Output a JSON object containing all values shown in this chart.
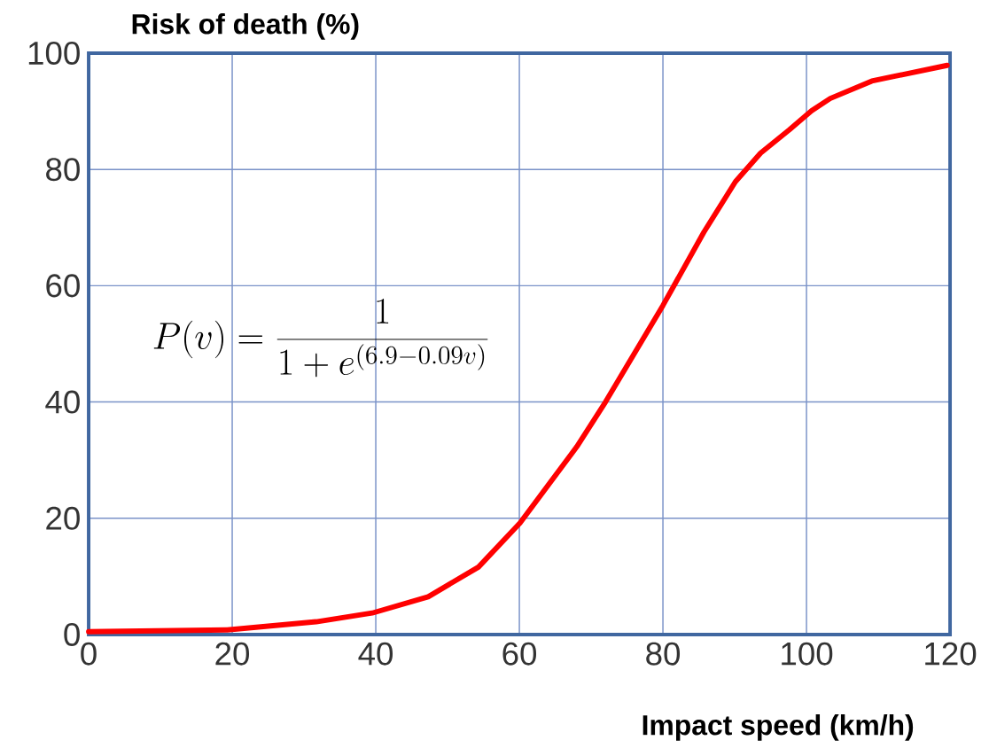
{
  "chart_data": {
    "type": "line",
    "xlabel": "Impact speed (km/h)",
    "ylabel": "Risk of death (%)",
    "annotations": [
      "P(v) = \\frac{1}{1 + e^{(6.9-0.09v)}}"
    ],
    "x": [
      0,
      19.3,
      31.7,
      39.5,
      47.3,
      54.3,
      60.1,
      68.0,
      72.0,
      80.0,
      85.7,
      90.1,
      93.6,
      97.6,
      100.7,
      103.3,
      109.1,
      112.2,
      119.6
    ],
    "series": [
      {
        "color": "#ff0000",
        "values": [
          0.5,
          0.8,
          2.2,
          3.7,
          6.5,
          11.6,
          19.2,
          32.3,
          40.0,
          56.6,
          69.2,
          77.9,
          82.8,
          86.8,
          90.1,
          92.2,
          95.2,
          96.0,
          97.9
        ]
      }
    ],
    "xlim": [
      0,
      120
    ],
    "ylim": [
      0,
      100
    ],
    "xticks": [
      0,
      20,
      40,
      60,
      80,
      100,
      120
    ],
    "yticks": [
      0,
      20,
      40,
      60,
      80,
      100
    ],
    "grid": true,
    "marker": "none",
    "line_style": "solid"
  }
}
